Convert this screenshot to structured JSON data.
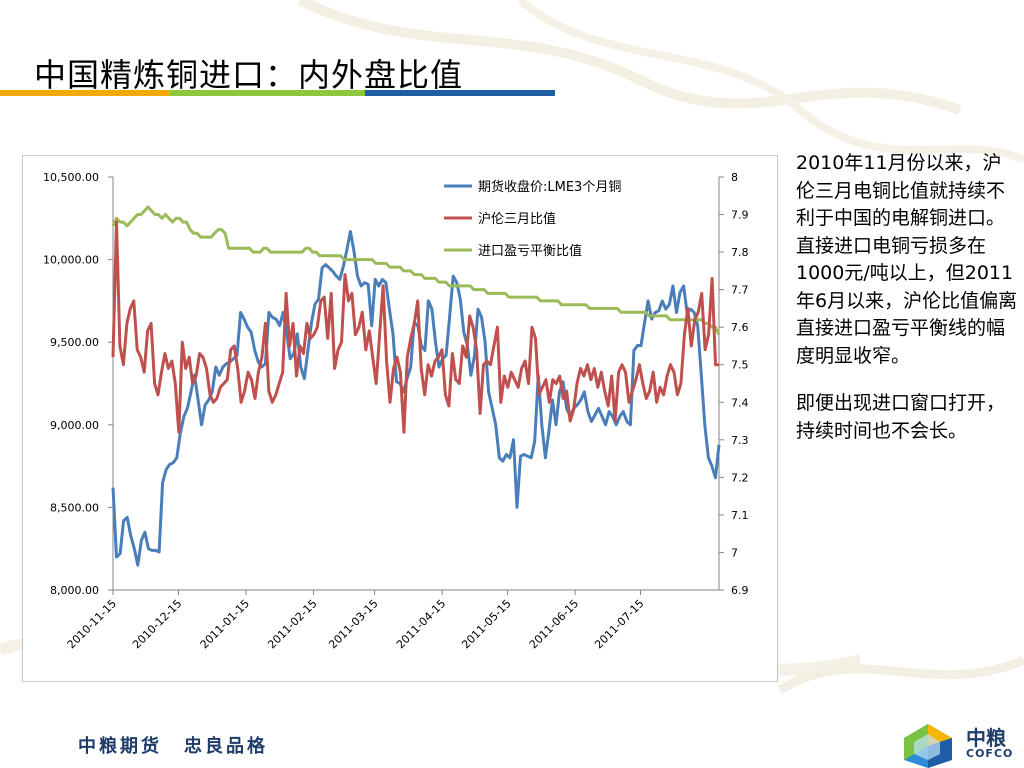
{
  "slide": {
    "title": "中国精炼铜进口：内外盘比值",
    "paragraphs": [
      "2010年11月份以来，沪伦三月电铜比值就持续不利于中国的电解铜进口。直接进口电铜亏损多在1000元/吨以上，但2011年6月以来，沪伦比值偏离直接进口盈亏平衡线的幅度明显收窄。",
      "即便出现进口窗口打开，持续时间也不会长。"
    ],
    "footer": {
      "left": "中粮期货",
      "right": "忠良品格"
    },
    "logo": {
      "cn": "中粮",
      "en": "COFCO"
    },
    "colors": {
      "title_rule": [
        "#f2a900",
        "#8dc63f",
        "#1f5fa8"
      ]
    }
  },
  "chart_data": {
    "type": "line",
    "x_tick_labels": [
      "2010-11-15",
      "2010-12-15",
      "2011-01-15",
      "2011-02-15",
      "2011-03-15",
      "2011-04-15",
      "2011-05-15",
      "2011-06-15",
      "2011-07-15"
    ],
    "x_range": [
      "2010-11-15",
      "2011-08-20"
    ],
    "y_left": {
      "ticks": [
        "8,000.00",
        "8,500.00",
        "9,000.00",
        "9,500.00",
        "10,000.00",
        "10,500.00"
      ],
      "range": [
        8000,
        10500
      ]
    },
    "y_right": {
      "ticks": [
        "6.9",
        "7",
        "7.1",
        "7.2",
        "7.3",
        "7.4",
        "7.5",
        "7.6",
        "7.7",
        "7.8",
        "7.9",
        "8"
      ],
      "range": [
        6.9,
        8.0
      ]
    },
    "legend_position": "top-right",
    "series": [
      {
        "name": "期货收盘价:LME3个月铜",
        "color": "#4a7ebb",
        "axis": "left",
        "values": [
          8620,
          8200,
          8220,
          8420,
          8440,
          8330,
          8250,
          8150,
          8300,
          8350,
          8250,
          8240,
          8240,
          8230,
          8650,
          8730,
          8760,
          8770,
          8800,
          8950,
          9050,
          9100,
          9200,
          9300,
          9150,
          9000,
          9120,
          9150,
          9200,
          9350,
          9300,
          9350,
          9370,
          9380,
          9400,
          9420,
          9680,
          9640,
          9590,
          9560,
          9450,
          9380,
          9350,
          9370,
          9680,
          9650,
          9640,
          9600,
          9680,
          9560,
          9400,
          9430,
          9550,
          9350,
          9280,
          9450,
          9620,
          9730,
          9760,
          9950,
          9970,
          9950,
          9930,
          9900,
          9880,
          9960,
          10060,
          10170,
          10050,
          9900,
          9840,
          9860,
          9850,
          9600,
          9880,
          9840,
          9880,
          9860,
          9700,
          9550,
          9260,
          9250,
          9200,
          9280,
          9350,
          9620,
          9600,
          9480,
          9450,
          9750,
          9700,
          9500,
          9350,
          9400,
          9420,
          9660,
          9900,
          9860,
          9760,
          9560,
          9480,
          9300,
          9420,
          9700,
          9650,
          9500,
          9200,
          9100,
          9000,
          8800,
          8780,
          8820,
          8800,
          8910,
          8500,
          8810,
          8820,
          8810,
          8800,
          8900,
          9300,
          9000,
          8800,
          8960,
          9150,
          9000,
          9200,
          9260,
          9100,
          9050,
          9100,
          9120,
          9150,
          9200,
          9080,
          9020,
          9060,
          9100,
          9050,
          9000,
          9080,
          9050,
          9000,
          9050,
          9080,
          9020,
          9000,
          9450,
          9480,
          9480,
          9620,
          9750,
          9640,
          9680,
          9690,
          9750,
          9700,
          9730,
          9840,
          9680,
          9800,
          9840,
          9680,
          9700,
          9680,
          9600,
          9300,
          9000,
          8800,
          8750,
          8680,
          8880
        ]
      },
      {
        "name": "沪伦三月比值",
        "color": "#c0504d",
        "axis": "right",
        "values": [
          7.52,
          7.88,
          7.55,
          7.5,
          7.61,
          7.65,
          7.67,
          7.54,
          7.52,
          7.48,
          7.59,
          7.61,
          7.45,
          7.42,
          7.48,
          7.53,
          7.49,
          7.51,
          7.45,
          7.32,
          7.56,
          7.49,
          7.52,
          7.45,
          7.47,
          7.53,
          7.52,
          7.49,
          7.42,
          7.4,
          7.41,
          7.44,
          7.45,
          7.46,
          7.54,
          7.55,
          7.49,
          7.4,
          7.43,
          7.48,
          7.46,
          7.41,
          7.48,
          7.52,
          7.61,
          7.43,
          7.4,
          7.42,
          7.45,
          7.48,
          7.69,
          7.55,
          7.61,
          7.47,
          7.55,
          7.53,
          7.61,
          7.57,
          7.58,
          7.6,
          7.67,
          7.68,
          7.57,
          7.69,
          7.49,
          7.54,
          7.56,
          7.74,
          7.67,
          7.69,
          7.58,
          7.6,
          7.64,
          7.54,
          7.59,
          7.52,
          7.45,
          7.58,
          7.71,
          7.51,
          7.4,
          7.49,
          7.52,
          7.48,
          7.32,
          7.52,
          7.57,
          7.61,
          7.67,
          7.49,
          7.42,
          7.5,
          7.47,
          7.51,
          7.52,
          7.54,
          7.42,
          7.39,
          7.53,
          7.46,
          7.45,
          7.55,
          7.52,
          7.63,
          7.6,
          7.54,
          7.37,
          7.5,
          7.51,
          7.5,
          7.55,
          7.6,
          7.4,
          7.47,
          7.44,
          7.48,
          7.46,
          7.44,
          7.49,
          7.51,
          7.45,
          7.6,
          7.57,
          7.42,
          7.44,
          7.46,
          7.4,
          7.46,
          7.45,
          7.47,
          7.41,
          7.43,
          7.35,
          7.38,
          7.45,
          7.49,
          7.47,
          7.5,
          7.46,
          7.49,
          7.44,
          7.48,
          7.43,
          7.39,
          7.47,
          7.35,
          7.48,
          7.5,
          7.48,
          7.4,
          7.43,
          7.46,
          7.5,
          7.45,
          7.41,
          7.43,
          7.48,
          7.4,
          7.44,
          7.42,
          7.47,
          7.5,
          7.48,
          7.42,
          7.45,
          7.58,
          7.65,
          7.55,
          7.62,
          7.64,
          7.69,
          7.54,
          7.58,
          7.73,
          7.5,
          7.5
        ]
      },
      {
        "name": "进口盈亏平衡比值",
        "color": "#9bbb59",
        "axis": "right",
        "values": [
          7.87,
          7.89,
          7.88,
          7.88,
          7.87,
          7.88,
          7.89,
          7.9,
          7.9,
          7.91,
          7.92,
          7.91,
          7.9,
          7.9,
          7.89,
          7.9,
          7.89,
          7.88,
          7.89,
          7.89,
          7.88,
          7.88,
          7.86,
          7.85,
          7.85,
          7.84,
          7.84,
          7.84,
          7.84,
          7.85,
          7.86,
          7.86,
          7.85,
          7.81,
          7.81,
          7.81,
          7.81,
          7.81,
          7.81,
          7.81,
          7.8,
          7.8,
          7.8,
          7.81,
          7.81,
          7.8,
          7.8,
          7.8,
          7.8,
          7.8,
          7.8,
          7.8,
          7.8,
          7.8,
          7.8,
          7.81,
          7.81,
          7.8,
          7.8,
          7.79,
          7.79,
          7.79,
          7.79,
          7.79,
          7.79,
          7.79,
          7.78,
          7.78,
          7.78,
          7.78,
          7.78,
          7.78,
          7.78,
          7.78,
          7.78,
          7.77,
          7.77,
          7.77,
          7.77,
          7.76,
          7.76,
          7.76,
          7.76,
          7.75,
          7.75,
          7.75,
          7.74,
          7.74,
          7.74,
          7.73,
          7.73,
          7.73,
          7.73,
          7.72,
          7.72,
          7.72,
          7.71,
          7.71,
          7.71,
          7.71,
          7.71,
          7.71,
          7.71,
          7.7,
          7.7,
          7.7,
          7.7,
          7.69,
          7.69,
          7.69,
          7.69,
          7.69,
          7.69,
          7.68,
          7.68,
          7.68,
          7.68,
          7.68,
          7.68,
          7.68,
          7.68,
          7.68,
          7.67,
          7.67,
          7.67,
          7.67,
          7.67,
          7.67,
          7.66,
          7.66,
          7.66,
          7.66,
          7.66,
          7.66,
          7.66,
          7.66,
          7.65,
          7.65,
          7.65,
          7.65,
          7.65,
          7.65,
          7.65,
          7.65,
          7.65,
          7.64,
          7.64,
          7.64,
          7.64,
          7.64,
          7.64,
          7.64,
          7.64,
          7.63,
          7.63,
          7.63,
          7.63,
          7.63,
          7.63,
          7.62,
          7.62,
          7.62,
          7.62,
          7.62,
          7.62,
          7.62,
          7.62,
          7.62,
          7.62,
          7.61,
          7.61,
          7.6,
          7.6,
          7.58
        ]
      }
    ]
  }
}
